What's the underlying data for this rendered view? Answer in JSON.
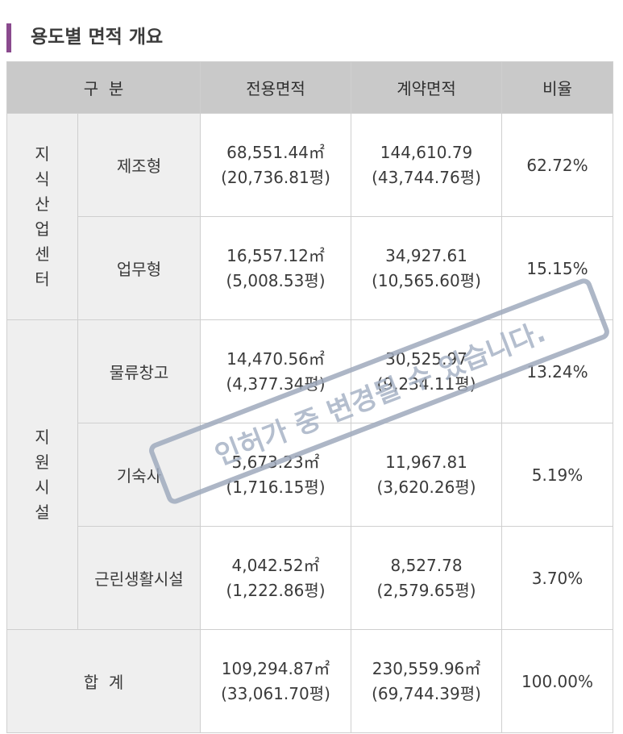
{
  "title": "용도별 면적 개요",
  "header": {
    "category": "구  분",
    "exclusive": "전용면적",
    "contract": "계약면적",
    "ratio": "비율"
  },
  "groups": {
    "knowledge": [
      "지",
      "식",
      "산",
      "업",
      "센",
      "터"
    ],
    "support": [
      "지",
      "원",
      "시",
      "설"
    ]
  },
  "rows": [
    {
      "sub": "제조형",
      "excl_m2": "68,551.44㎡",
      "excl_py": "(20,736.81평)",
      "cont_m2": "144,610.79",
      "cont_py": "(43,744.76평)",
      "ratio": "62.72%"
    },
    {
      "sub": "업무형",
      "excl_m2": "16,557.12㎡",
      "excl_py": "(5,008.53평)",
      "cont_m2": "34,927.61",
      "cont_py": "(10,565.60평)",
      "ratio": "15.15%"
    },
    {
      "sub": "물류창고",
      "excl_m2": "14,470.56㎡",
      "excl_py": "(4,377.34평)",
      "cont_m2": "30,525.97",
      "cont_py": "(9,234.11평)",
      "ratio": "13.24%"
    },
    {
      "sub": "기숙사",
      "excl_m2": "5,673.23㎡",
      "excl_py": "(1,716.15평)",
      "cont_m2": "11,967.81",
      "cont_py": "(3,620.26평)",
      "ratio": "5.19%"
    },
    {
      "sub": "근린생활시설",
      "excl_m2": "4,042.52㎡",
      "excl_py": "(1,222.86평)",
      "cont_m2": "8,527.78",
      "cont_py": "(2,579.65평)",
      "ratio": "3.70%"
    }
  ],
  "total": {
    "label": "합  계",
    "excl_m2": "109,294.87㎡",
    "excl_py": "(33,061.70평)",
    "cont_m2": "230,559.96㎡",
    "cont_py": "(69,744.39평)",
    "ratio": "100.00%"
  },
  "watermark": "인허가 중 변경될 수 있습니다."
}
